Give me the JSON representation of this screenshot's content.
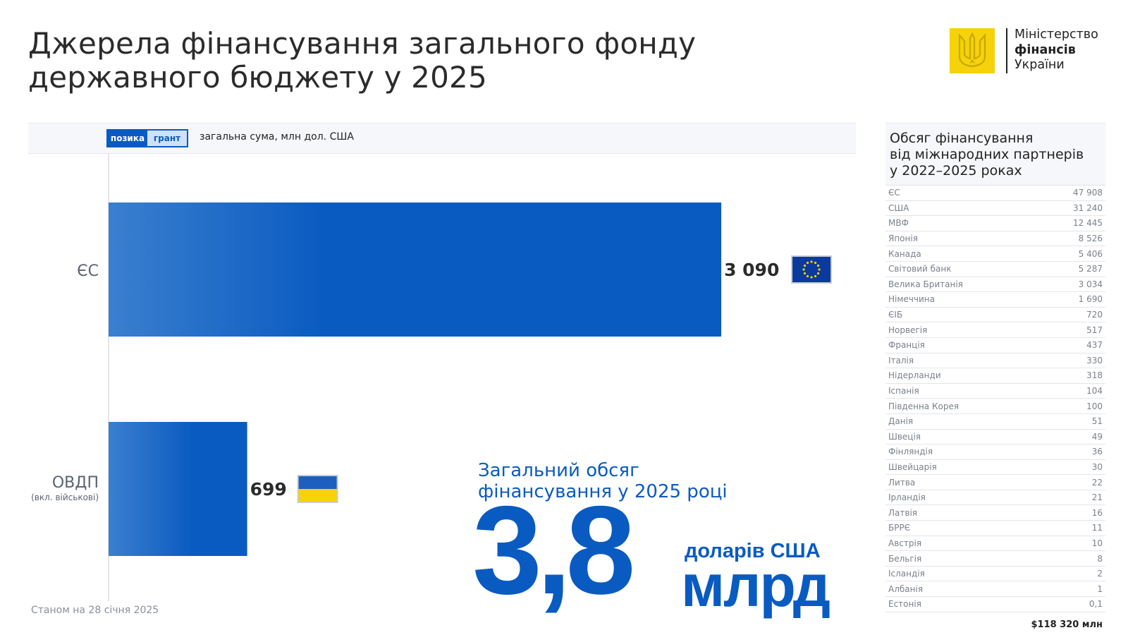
{
  "title": {
    "line1": "Джерела фінансування загального фонду",
    "line2": "державного бюджету у 2025"
  },
  "logo": {
    "line1": "Міністерство",
    "line2": "фінансів",
    "line3": "України"
  },
  "legend": {
    "loan": "позика",
    "grant": "грант",
    "total": "загальна сума, млн дол. США"
  },
  "colors": {
    "accent": "#0a5bc1",
    "bar_light": "#3b7fcf",
    "grant_fill": "#cfe1f9",
    "emblem": "#f5d20a"
  },
  "chart_data": {
    "type": "bar",
    "orientation": "horizontal",
    "categories": [
      "ЄС",
      "ОВДП"
    ],
    "category_notes": [
      "",
      "(вкл. військові)"
    ],
    "values": [
      3090,
      699
    ],
    "value_labels": [
      "3 090",
      "699"
    ],
    "flags": [
      "eu-flag-icon",
      "ukraine-flag-icon"
    ],
    "unit": "млн дол. США",
    "xlim": [
      0,
      3200
    ],
    "grid": false,
    "legend_position": "top-left"
  },
  "summary": {
    "label_line1": "Загальний обсяг",
    "label_line2": "фінансування у 2025 році",
    "value": "3,8",
    "unit_currency": "доларів США",
    "unit_scale": "млрд"
  },
  "footnote": "Станом на 28 січня 2025",
  "partners_panel": {
    "title_line1": "Обсяг фінансування",
    "title_line2": "від міжнародних партнерів",
    "title_line3": "у 2022–2025 роках",
    "rows": [
      {
        "name": "ЄС",
        "value": "47 908"
      },
      {
        "name": "США",
        "value": "31 240"
      },
      {
        "name": "МВФ",
        "value": "12 445"
      },
      {
        "name": "Японія",
        "value": "8 526"
      },
      {
        "name": "Канада",
        "value": "5 406"
      },
      {
        "name": "Світовий банк",
        "value": "5 287"
      },
      {
        "name": "Велика Британія",
        "value": "3 034"
      },
      {
        "name": "Німеччина",
        "value": "1 690"
      },
      {
        "name": "ЄІБ",
        "value": "720"
      },
      {
        "name": "Норвегія",
        "value": "517"
      },
      {
        "name": "Франція",
        "value": "437"
      },
      {
        "name": "Італія",
        "value": "330"
      },
      {
        "name": "Нідерланди",
        "value": "318"
      },
      {
        "name": "Іспанія",
        "value": "104"
      },
      {
        "name": "Південна Корея",
        "value": "100"
      },
      {
        "name": "Данія",
        "value": "51"
      },
      {
        "name": "Швеція",
        "value": "49"
      },
      {
        "name": "Фінляндія",
        "value": "36"
      },
      {
        "name": "Швейцарія",
        "value": "30"
      },
      {
        "name": "Литва",
        "value": "22"
      },
      {
        "name": "Ірландія",
        "value": "21"
      },
      {
        "name": "Латвія",
        "value": "16"
      },
      {
        "name": "БРРЄ",
        "value": "11"
      },
      {
        "name": "Австрія",
        "value": "10"
      },
      {
        "name": "Бельгія",
        "value": "8"
      },
      {
        "name": "Ісландія",
        "value": "2"
      },
      {
        "name": "Албанія",
        "value": "1"
      },
      {
        "name": "Естонія",
        "value": "0,1"
      }
    ],
    "total": "$118 320 млн"
  }
}
